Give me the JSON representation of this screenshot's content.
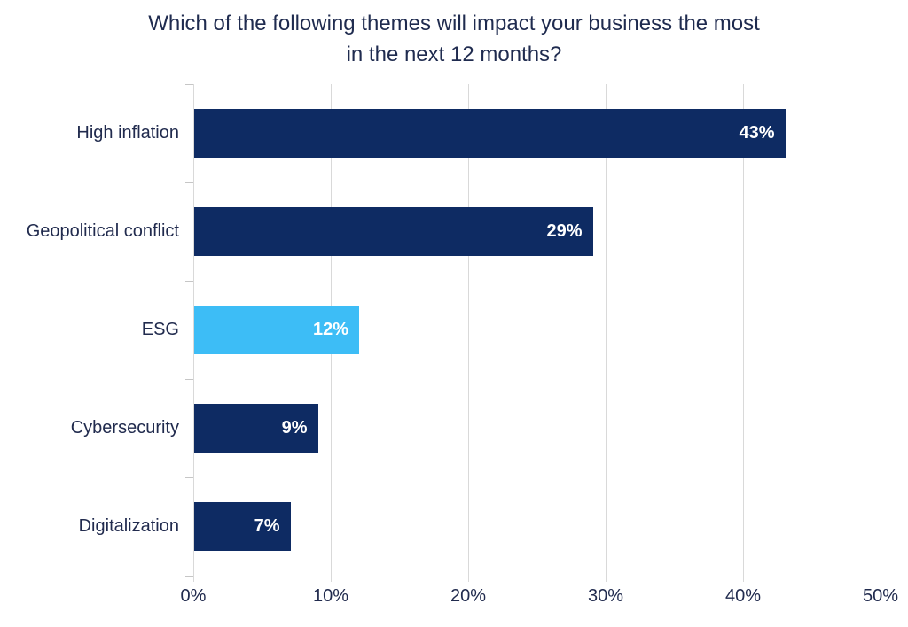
{
  "page": {
    "background_color": "#ffffff"
  },
  "chart_data": {
    "type": "bar",
    "orientation": "horizontal",
    "title": "Which of the following themes will impact your business the most in the next 12 months?",
    "title_lines": [
      "Which of the following themes will impact your business the most",
      "in the next 12 months?"
    ],
    "categories": [
      "High inflation",
      "Geopolitical conflict",
      "ESG",
      "Cybersecurity",
      "Digitalization"
    ],
    "values": [
      43,
      29,
      12,
      9,
      7
    ],
    "data_labels": [
      "43%",
      "29%",
      "12%",
      "9%",
      "7%"
    ],
    "bar_colors": [
      "#0e2b63",
      "#0e2b63",
      "#3dbdf6",
      "#0e2b63",
      "#0e2b63"
    ],
    "x_ticks": [
      "0%",
      "10%",
      "20%",
      "30%",
      "40%",
      "50%"
    ],
    "xlim": [
      0,
      50
    ],
    "xlabel": "",
    "ylabel": "",
    "grid": "vertical-only",
    "legend": "none",
    "colors": {
      "bar_navy": "#0e2b63",
      "bar_lightblue": "#3dbdf6",
      "title_text": "#1f2b4f",
      "axis_text": "#212b4e",
      "value_label_text": "#ffffff",
      "gridline": "#d9d9d9"
    }
  }
}
